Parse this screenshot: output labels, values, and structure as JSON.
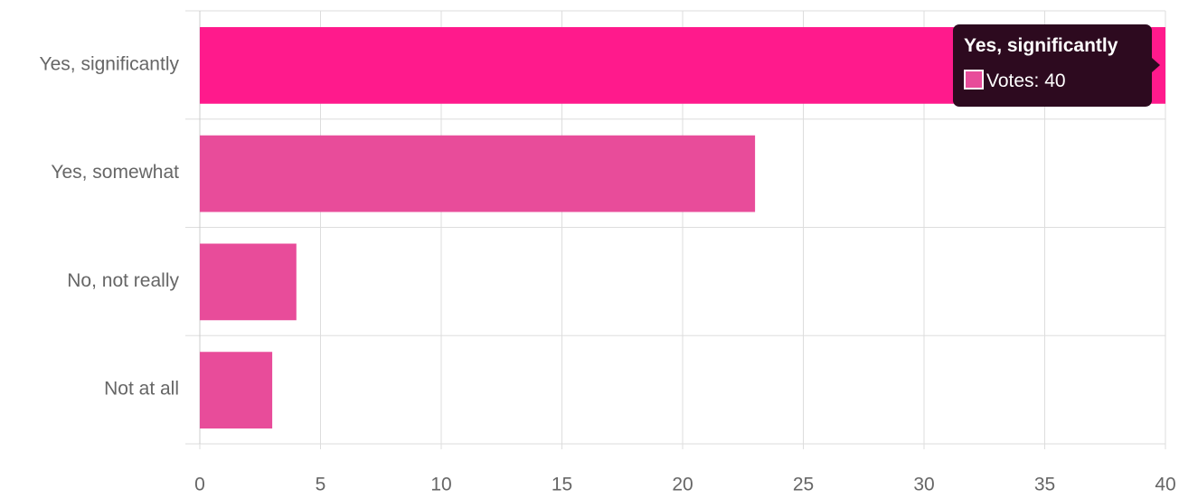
{
  "chart_data": {
    "type": "bar",
    "orientation": "horizontal",
    "categories": [
      "Yes, significantly",
      "Yes, somewhat",
      "No, not really",
      "Not at all"
    ],
    "series": [
      {
        "name": "Votes",
        "color": "#e84c9a",
        "values": [
          40,
          23,
          4,
          3
        ]
      }
    ],
    "hover_index": 0,
    "hover_color": "#ff1a8c",
    "xlim": [
      0,
      40
    ],
    "xticks": [
      0,
      5,
      10,
      15,
      20,
      25,
      30,
      35,
      40
    ],
    "grid": true
  }
}
